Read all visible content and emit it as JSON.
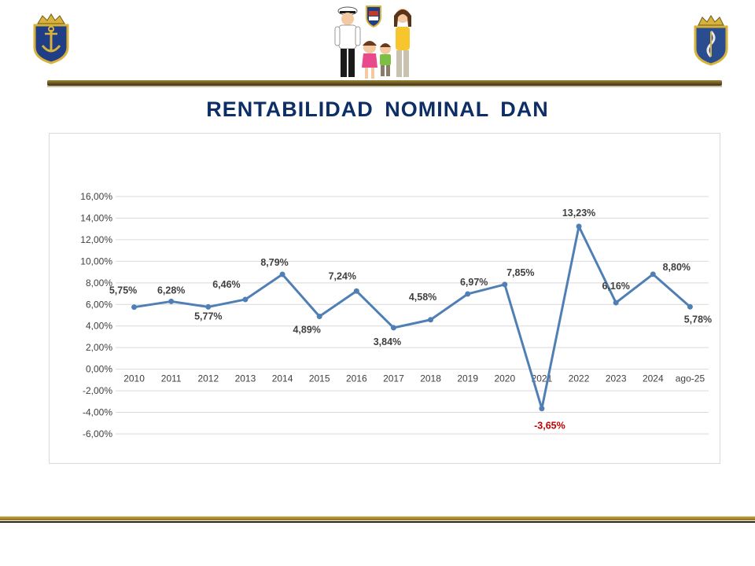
{
  "slide": {
    "title": "RENTABILIDAD  NOMINAL  DAN"
  },
  "logos": {
    "left": "navy-anchor-emblem",
    "center": "sailor-family-illustration",
    "right": "navy-crest-emblem"
  },
  "colors": {
    "title": "#0d2f66",
    "line": "#4f7fb4",
    "negative_label": "#c00000",
    "label": "#3f3f3f",
    "gold": "#a3843a"
  },
  "chart_data": {
    "type": "line",
    "title": "",
    "xlabel": "",
    "ylabel": "",
    "categories": [
      "2010",
      "2011",
      "2012",
      "2013",
      "2014",
      "2015",
      "2016",
      "2017",
      "2018",
      "2019",
      "2020",
      "2021",
      "2022",
      "2023",
      "2024",
      "ago-25"
    ],
    "series": [
      {
        "values": [
          5.75,
          6.28,
          5.77,
          6.46,
          8.79,
          4.89,
          7.24,
          3.84,
          4.58,
          6.97,
          7.85,
          -3.65,
          13.23,
          6.16,
          8.8,
          5.78
        ],
        "data_labels": [
          "5,75%",
          "6,28%",
          "5,77%",
          "6,46%",
          "8,79%",
          "4,89%",
          "7,24%",
          "3,84%",
          "4,58%",
          "6,97%",
          "7,85%",
          "-3,65%",
          "13,23%",
          "6,16%",
          "8,80%",
          "5,78%"
        ]
      }
    ],
    "ylim": [
      -6,
      16
    ],
    "ytick_values": [
      16,
      14,
      12,
      10,
      8,
      6,
      4,
      2,
      0,
      -2,
      -4,
      -6
    ],
    "ytick_labels": [
      "16,00%",
      "14,00%",
      "12,00%",
      "10,00%",
      "8,00%",
      "6,00%",
      "4,00%",
      "2,00%",
      "0,00%",
      "-2,00%",
      "-4,00%",
      "-6,00%"
    ],
    "grid": true,
    "legend": "none",
    "markers": true
  }
}
